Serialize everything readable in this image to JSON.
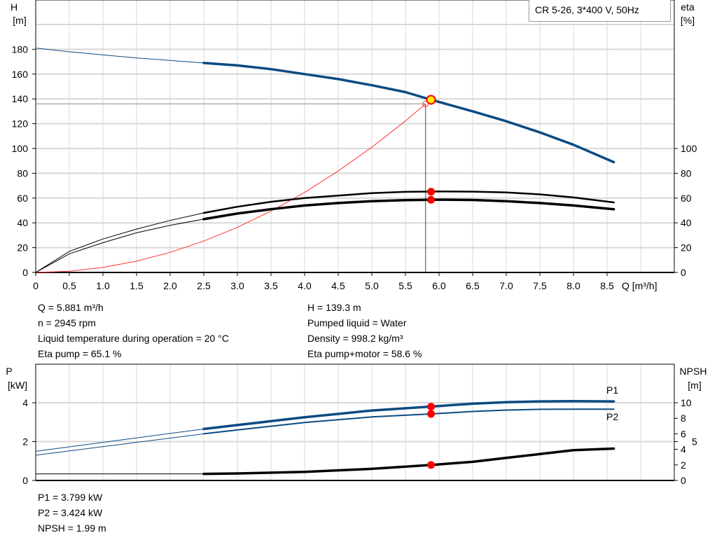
{
  "legend_title": "CR 5-26, 3*400 V, 50Hz",
  "colors": {
    "head": "#0b4a82",
    "power": "#0b4a82",
    "eta": "#000000",
    "npsh": "#000000",
    "system": "#ff3333",
    "duty_point": "#ffee00",
    "marker": "#ff0000",
    "grid": "#d8d8d8"
  },
  "chart_data": [
    {
      "type": "line",
      "title": "",
      "xlabel": "Q [m³/h]",
      "ylabel_left": "H\n[m]",
      "ylabel_left_lines": [
        "H",
        "[m]"
      ],
      "ylabel_right_lines": [
        "eta",
        "[%]"
      ],
      "xlim": [
        0,
        9.5
      ],
      "ylim_left": [
        0,
        220
      ],
      "ylim_right": [
        0,
        220
      ],
      "x_ticks": [
        "0",
        "0.5",
        "1.0",
        "1.5",
        "2.0",
        "2.5",
        "3.0",
        "3.5",
        "4.0",
        "4.5",
        "5.0",
        "5.5",
        "6.0",
        "6.5",
        "7.0",
        "7.5",
        "8.0",
        "8.5"
      ],
      "y_ticks_left": [
        "0",
        "20",
        "40",
        "60",
        "80",
        "100",
        "120",
        "140",
        "160",
        "180"
      ],
      "y_ticks_right": [
        "0",
        "20",
        "40",
        "60",
        "80",
        "100"
      ],
      "grid": true,
      "series": [
        {
          "key": "head",
          "axis": "left",
          "x": [
            0,
            0.5,
            1,
            1.5,
            2,
            2.5,
            3,
            3.5,
            4,
            4.5,
            5,
            5.5,
            5.881,
            6,
            6.5,
            7,
            7.5,
            8,
            8.6
          ],
          "y": [
            181,
            178,
            175.5,
            173,
            171,
            169,
            167,
            164,
            160,
            156,
            151,
            145.5,
            139.3,
            137.5,
            130,
            122,
            113,
            103,
            89
          ],
          "thick_from": 2.5
        },
        {
          "key": "eta_pump",
          "axis": "right",
          "x": [
            0,
            0.5,
            1,
            1.5,
            2,
            2.5,
            3,
            3.5,
            4,
            4.5,
            5,
            5.5,
            6,
            6.5,
            7,
            7.5,
            8,
            8.6
          ],
          "y": [
            0,
            17,
            27,
            35,
            42,
            48,
            53,
            57,
            60,
            62,
            64,
            65,
            65.3,
            65.2,
            64.5,
            63,
            60.5,
            56.5
          ],
          "thick_from": 2.5
        },
        {
          "key": "eta_pump_motor",
          "axis": "right",
          "x": [
            0,
            0.5,
            1,
            1.5,
            2,
            2.5,
            3,
            3.5,
            4,
            4.5,
            5,
            5.5,
            5.881,
            6,
            6.5,
            7,
            7.5,
            8,
            8.6
          ],
          "y": [
            0,
            15,
            24,
            32,
            38,
            43,
            47.5,
            51,
            54,
            56,
            57.5,
            58.3,
            58.6,
            58.7,
            58.5,
            57.5,
            56,
            54,
            51
          ],
          "thick_from": 2.5
        },
        {
          "key": "system",
          "axis": "left",
          "x": [
            0,
            0.5,
            1,
            1.5,
            2,
            2.5,
            3,
            3.5,
            4,
            4.5,
            5,
            5.5,
            5.8
          ],
          "y": [
            0,
            1,
            4,
            9.1,
            16.2,
            25.3,
            36.4,
            49.5,
            64.6,
            81.8,
            101,
            122.2,
            136
          ]
        }
      ],
      "duty_point": {
        "Q": 5.881,
        "H": 139.3,
        "eta_pump": 65.1,
        "eta_pump_motor": 58.6
      },
      "required_point": {
        "Q": 5.8,
        "H": 136
      }
    },
    {
      "type": "line",
      "title": "",
      "ylabel_left_lines": [
        "P",
        "[kW]"
      ],
      "ylabel_right_lines": [
        "NPSH",
        "[m]"
      ],
      "xlim": [
        0,
        9.5
      ],
      "ylim_left": [
        0,
        6
      ],
      "ylim_right": [
        0,
        15
      ],
      "y_ticks_left": [
        "0",
        "2",
        "4"
      ],
      "y_ticks_right": [
        "0",
        "2",
        "4",
        "5",
        "6",
        "8",
        "10"
      ],
      "grid": true,
      "series": [
        {
          "key": "P1",
          "name": "P1",
          "axis": "left",
          "x": [
            0,
            2.5,
            3,
            4,
            5,
            5.881,
            6.5,
            7,
            7.5,
            8,
            8.6
          ],
          "y": [
            1.5,
            2.65,
            2.85,
            3.25,
            3.6,
            3.8,
            3.95,
            4.03,
            4.07,
            4.08,
            4.07
          ],
          "thick_from": 2.5
        },
        {
          "key": "P2",
          "name": "P2",
          "axis": "left",
          "x": [
            0,
            2.5,
            3,
            4,
            5,
            5.881,
            6.5,
            7,
            7.5,
            8,
            8.6
          ],
          "y": [
            1.3,
            2.4,
            2.6,
            2.98,
            3.27,
            3.424,
            3.55,
            3.62,
            3.66,
            3.67,
            3.67
          ],
          "thick_from": 2.5
        },
        {
          "key": "NPSH",
          "axis": "right",
          "x": [
            0,
            2.5,
            3,
            4,
            5,
            5.881,
            6.5,
            7,
            7.5,
            8,
            8.6
          ],
          "y": [
            0.85,
            0.85,
            0.9,
            1.1,
            1.5,
            1.99,
            2.4,
            2.9,
            3.4,
            3.9,
            4.1
          ],
          "thick_from": 2.5
        }
      ],
      "duty_point": {
        "Q": 5.881,
        "P1": 3.799,
        "P2": 3.424,
        "NPSH": 1.99
      }
    }
  ],
  "info_top_left": [
    "Q = 5.881 m³/h",
    "n = 2945 rpm",
    "Liquid temperature during operation = 20 °C",
    "Eta pump = 65.1 %"
  ],
  "info_top_right": [
    "H = 139.3 m",
    "Pumped liquid = Water",
    "Density = 998.2 kg/m³",
    "Eta pump+motor = 58.6 %"
  ],
  "info_bottom": [
    "P1 = 3.799 kW",
    "P2 = 3.424 kW",
    "NPSH = 1.99 m"
  ]
}
